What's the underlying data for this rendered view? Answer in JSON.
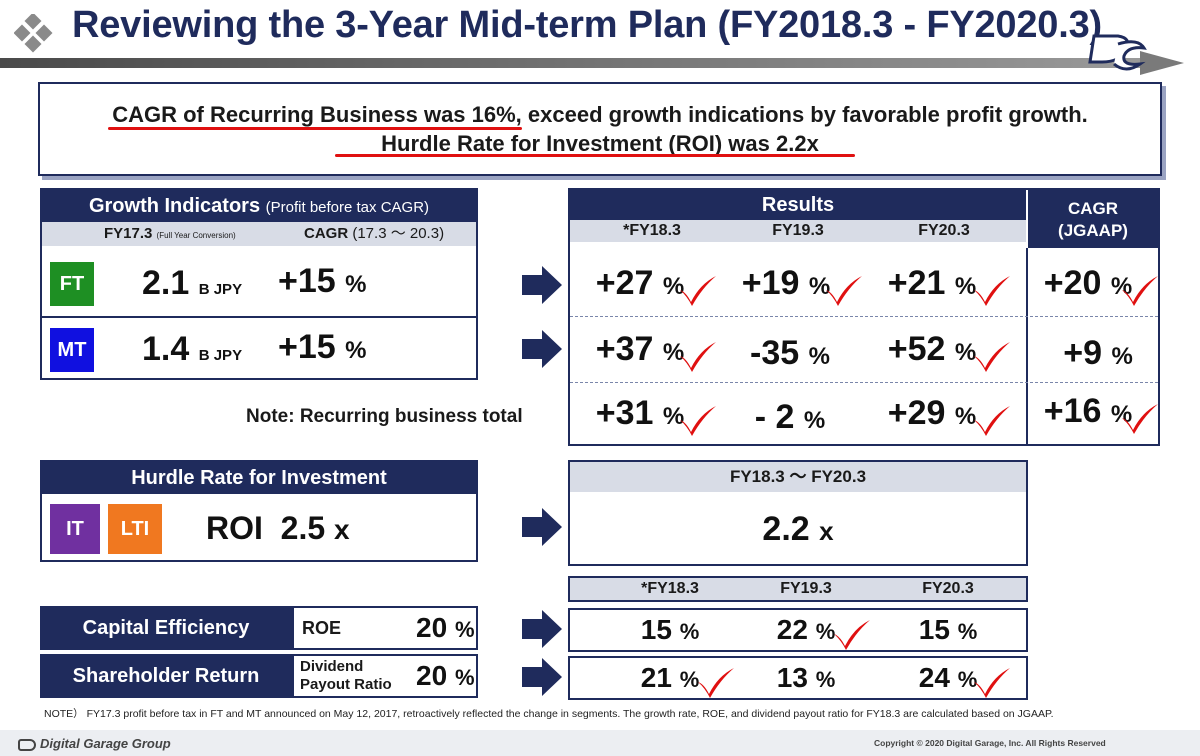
{
  "title": "Reviewing the 3-Year Mid-term Plan (FY2018.3 - FY2020.3)",
  "summary": {
    "line1_underlined": "CAGR of Recurring Business was 16%,",
    "line1_rest": " exceed growth indications by favorable profit growth.",
    "line2": "Hurdle Rate for Investment (ROI) was 2.2x"
  },
  "growth": {
    "header": "Growth Indicators",
    "header_note": "(Profit before tax CAGR)",
    "fy_label": "FY17.3",
    "fy_note": "(Full Year Conversion)",
    "cagr_label": "CAGR",
    "cagr_range": "(17.3 ～ 20.3)",
    "rows": [
      {
        "segment": "FT",
        "color": "#1e8f23",
        "value": "2.1",
        "unit": "B JPY",
        "cagr": "+15",
        "pct": "%"
      },
      {
        "segment": "MT",
        "color": "#1010e0",
        "value": "1.4",
        "unit": "B JPY",
        "cagr": "+15",
        "pct": "%"
      }
    ],
    "note": "Note: Recurring business total"
  },
  "results": {
    "header": "Results",
    "cagr_header_1": "CAGR",
    "cagr_header_2": "(JGAAP)",
    "columns": [
      "*FY18.3",
      "FY19.3",
      "FY20.3"
    ],
    "rows": [
      {
        "values": [
          "+27",
          "+19",
          "+21"
        ],
        "cagr": "+20"
      },
      {
        "values": [
          "+37",
          "-35",
          "+52"
        ],
        "cagr": "+9"
      },
      {
        "values": [
          "+31",
          "- 2",
          "+29"
        ],
        "cagr": "+16"
      }
    ],
    "pct": "%"
  },
  "hurdle": {
    "header": "Hurdle Rate for Investment",
    "seg1": "IT",
    "seg1_color": "#7030a0",
    "seg2": "LTI",
    "seg2_color": "#f07820",
    "roi_label": "ROI",
    "roi_value": "2.5",
    "roi_unit": "x",
    "period": "FY18.3 ～ FY20.3",
    "result_value": "2.2",
    "result_unit": "x"
  },
  "bottom": {
    "columns": [
      "*FY18.3",
      "FY19.3",
      "FY20.3"
    ],
    "rows": [
      {
        "label": "Capital Efficiency",
        "metric": "ROE",
        "target": "20",
        "values": [
          "15",
          "22",
          "15"
        ]
      },
      {
        "label": "Shareholder Return",
        "metric_1": "Dividend",
        "metric_2": "Payout Ratio",
        "target": "20",
        "values": [
          "21",
          "13",
          "24"
        ]
      }
    ],
    "pct": "%"
  },
  "note": "NOTE）  FY17.3 profit before tax in FT and MT announced on May 12, 2017, retroactively reflected the change in segments. The growth rate, ROE, and dividend payout ratio for FY18.3 are calculated based on JGAAP.",
  "footer": {
    "company": "Digital Garage Group",
    "copyright": "Copyright © 2020 Digital Garage, Inc. All Rights Reserved"
  },
  "colors": {
    "navy": "#1f2b5c",
    "red": "#e01010",
    "header_gray": "#d8dce6"
  }
}
